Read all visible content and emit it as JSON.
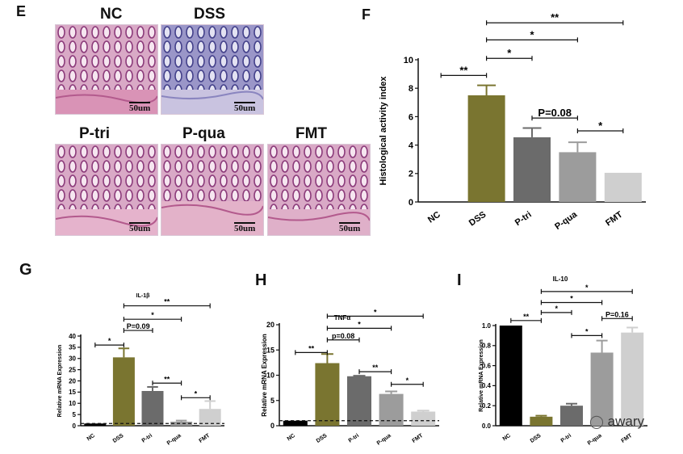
{
  "panels": {
    "E": "E",
    "F": "F",
    "G": "G",
    "H": "H",
    "I": "I"
  },
  "histology": {
    "images": [
      {
        "label": "NC",
        "scale": "50um",
        "stain": "pink"
      },
      {
        "label": "DSS",
        "scale": "50um",
        "stain": "purple"
      },
      {
        "label": "P-tri",
        "scale": "50um",
        "stain": "pink"
      },
      {
        "label": "P-qua",
        "scale": "50um",
        "stain": "pink"
      },
      {
        "label": "FMT",
        "scale": "50um",
        "stain": "pink"
      }
    ]
  },
  "watermark": {
    "text": "awary",
    "icon": "wechat-icon"
  },
  "chart_data": [
    {
      "id": "F",
      "type": "bar",
      "title": "",
      "ylabel": "Histological activity index",
      "xlabel": "",
      "ylim": [
        0,
        10
      ],
      "yticks": [
        0,
        2,
        4,
        6,
        8,
        10
      ],
      "categories": [
        "NC",
        "DSS",
        "P-tri",
        "P-qua",
        "FMT"
      ],
      "values": [
        0,
        7.5,
        4.55,
        3.5,
        2.05
      ],
      "errors": [
        0,
        0.7,
        0.65,
        0.7,
        0
      ],
      "colors": [
        "#000000",
        "#7a7530",
        "#6b6b6b",
        "#9c9c9c",
        "#cfcfcf"
      ],
      "annotations": [
        {
          "from": 0,
          "to": 1,
          "y": 8.9,
          "text": "**"
        },
        {
          "from": 1,
          "to": 2,
          "y": 10.1,
          "text": "*"
        },
        {
          "from": 1,
          "to": 3,
          "y": 11.4,
          "text": "*"
        },
        {
          "from": 1,
          "to": 4,
          "y": 12.6,
          "text": "**"
        },
        {
          "from": 2,
          "to": 3,
          "y": 5.9,
          "text": "P=0.08"
        },
        {
          "from": 3,
          "to": 4,
          "y": 5.0,
          "text": "*"
        }
      ]
    },
    {
      "id": "G",
      "type": "bar",
      "title": "IL-1β",
      "ylabel": "Relative mRNA Expression",
      "xlabel": "",
      "ylim": [
        0,
        40
      ],
      "yticks": [
        0,
        5,
        10,
        15,
        20,
        25,
        30,
        35,
        40
      ],
      "categories": [
        "NC",
        "DSS",
        "P-tri",
        "P-qua",
        "FMT"
      ],
      "values": [
        1,
        30.5,
        15.5,
        1.8,
        7.5
      ],
      "errors": [
        0,
        4,
        1.8,
        0.5,
        3.5
      ],
      "colors": [
        "#000000",
        "#7a7530",
        "#6b6b6b",
        "#9c9c9c",
        "#cfcfcf"
      ],
      "annotations": [
        {
          "from": 0,
          "to": 1,
          "y": 36,
          "text": "*"
        },
        {
          "from": 1,
          "to": 2,
          "y": 42.5,
          "text": "P=0.09"
        },
        {
          "from": 1,
          "to": 3,
          "y": 47.5,
          "text": "*"
        },
        {
          "from": 1,
          "to": 4,
          "y": 53.5,
          "text": "**"
        },
        {
          "from": 2,
          "to": 3,
          "y": 19,
          "text": "**"
        },
        {
          "from": 3,
          "to": 4,
          "y": 12.5,
          "text": "*"
        }
      ]
    },
    {
      "id": "H",
      "type": "bar",
      "title": "TNFα",
      "ylabel": "Relative mRNA Expression",
      "xlabel": "",
      "ylim": [
        0,
        20
      ],
      "yticks": [
        0,
        5,
        10,
        15,
        20
      ],
      "categories": [
        "NC",
        "DSS",
        "P-tri",
        "P-qua",
        "FMT"
      ],
      "values": [
        1,
        12.4,
        9.8,
        6.3,
        2.8
      ],
      "errors": [
        0,
        1.8,
        0.1,
        0.5,
        0.2
      ],
      "colors": [
        "#000000",
        "#7a7530",
        "#6b6b6b",
        "#9c9c9c",
        "#cfcfcf"
      ],
      "annotations": [
        {
          "from": 0,
          "to": 1,
          "y": 14.5,
          "text": "**"
        },
        {
          "from": 1,
          "to": 2,
          "y": 17,
          "text": "p=0.08"
        },
        {
          "from": 1,
          "to": 3,
          "y": 19.3,
          "text": "*"
        },
        {
          "from": 1,
          "to": 4,
          "y": 21.7,
          "text": "*"
        },
        {
          "from": 2,
          "to": 3,
          "y": 10.7,
          "text": "**"
        },
        {
          "from": 3,
          "to": 4,
          "y": 8.2,
          "text": "*"
        }
      ]
    },
    {
      "id": "I",
      "type": "bar",
      "title": "IL-10",
      "ylabel": "Relative mRNA Expression",
      "xlabel": "",
      "ylim": [
        0,
        1.0
      ],
      "yticks": [
        0.0,
        0.2,
        0.4,
        0.6,
        0.8,
        1.0
      ],
      "categories": [
        "NC",
        "DSS",
        "P-tri",
        "P-qua",
        "FMT"
      ],
      "values": [
        1.0,
        0.09,
        0.2,
        0.73,
        0.93
      ],
      "errors": [
        0,
        0.01,
        0.02,
        0.12,
        0.05
      ],
      "colors": [
        "#000000",
        "#7a7530",
        "#6b6b6b",
        "#9c9c9c",
        "#cfcfcf"
      ],
      "annotations": [
        {
          "from": 0,
          "to": 1,
          "y": 1.05,
          "text": "**"
        },
        {
          "from": 1,
          "to": 2,
          "y": 1.13,
          "text": "*"
        },
        {
          "from": 1,
          "to": 3,
          "y": 1.23,
          "text": "*"
        },
        {
          "from": 1,
          "to": 4,
          "y": 1.34,
          "text": "*"
        },
        {
          "from": 2,
          "to": 3,
          "y": 0.9,
          "text": "*"
        },
        {
          "from": 3,
          "to": 4,
          "y": 1.07,
          "text": "P=0.16"
        }
      ]
    }
  ]
}
